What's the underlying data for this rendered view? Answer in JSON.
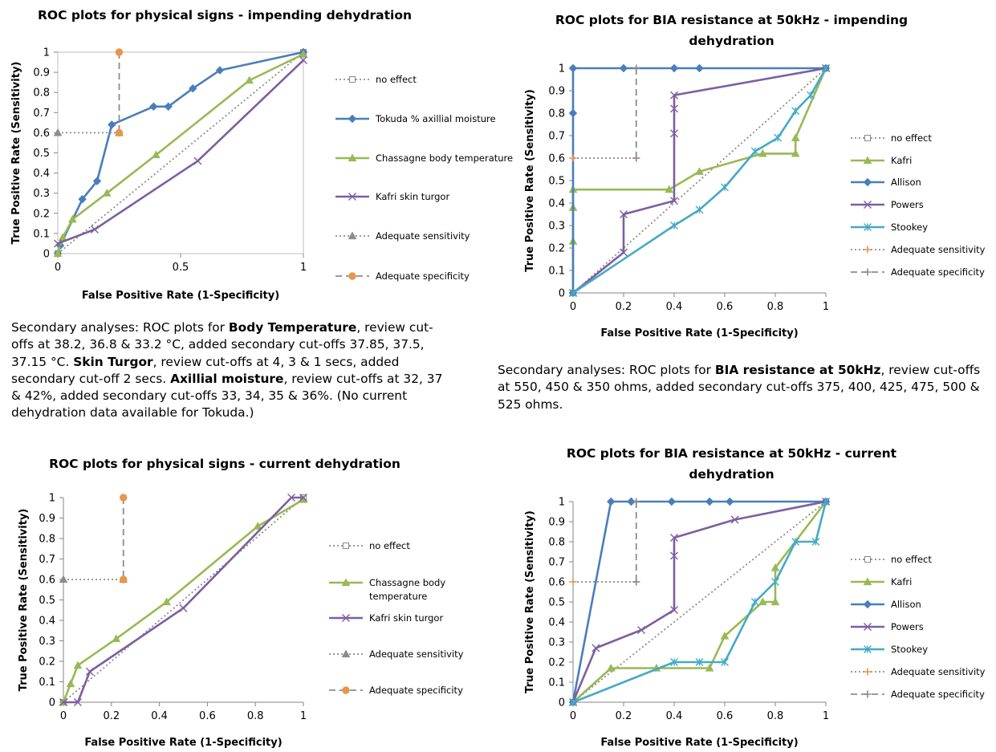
{
  "charts": [
    {
      "title_lines": [
        "ROC plots for physical signs - impending dehydration"
      ],
      "xlabel": "False Positive Rate (1-Specificity)",
      "ylabel": "True Positive Rate (Sensitivity)",
      "xticks": [
        "0",
        "0.5",
        "1"
      ],
      "yticks": [
        "0",
        "0.1",
        "0.2",
        "0.3",
        "0.4",
        "0.5",
        "0.6",
        "0.7",
        "0.8",
        "0.9",
        "1"
      ],
      "legend": [
        "no effect",
        "Tokuda % axillial moisture",
        "Chassagne body temperature",
        "Kafri skin turgor",
        "Adequate sensitivity",
        "Adequate specificity"
      ]
    },
    {
      "title_lines": [
        "ROC plots for BIA resistance at 50kHz - impending",
        "dehydration"
      ],
      "xlabel": "False Positive Rate (1-Specificity)",
      "ylabel": "True Positive Rate (Sensitivity)",
      "xticks": [
        "0",
        "0.2",
        "0.4",
        "0.6",
        "0.8",
        "1"
      ],
      "yticks": [
        "0",
        "0.1",
        "0.2",
        "0.3",
        "0.4",
        "0.5",
        "0.6",
        "0.7",
        "0.8",
        "0.9",
        "1"
      ],
      "legend": [
        "no effect",
        "Kafri",
        "Allison",
        "Powers",
        "Stookey",
        "Adequate sensitivity",
        "Adequate specificity"
      ]
    },
    {
      "title_lines": [
        "ROC plots for physical signs - current dehydration"
      ],
      "xlabel": "False Positive Rate (1-Specificity)",
      "ylabel": "True Positive Rate (Sensitivity)",
      "xticks": [
        "0",
        "0.2",
        "0.4",
        "0.6",
        "0.8",
        "1"
      ],
      "yticks": [
        "0",
        "0.1",
        "0.2",
        "0.3",
        "0.4",
        "0.5",
        "0.6",
        "0.7",
        "0.8",
        "0.9",
        "1"
      ],
      "legend": [
        "no effect",
        "Chassagne body temperature",
        "Kafri skin turgor",
        "Adequate sensitivity",
        "Adequate specificity"
      ]
    },
    {
      "title_lines": [
        "ROC plots for BIA resistance at 50kHz - current",
        "dehydration"
      ],
      "xlabel": "False Positive Rate (1-Specificity)",
      "ylabel": "True Positive Rate (Sensitivity)",
      "xticks": [
        "0",
        "0.2",
        "0.4",
        "0.6",
        "0.8",
        "1"
      ],
      "yticks": [
        "0",
        "0.1",
        "0.2",
        "0.3",
        "0.4",
        "0.5",
        "0.6",
        "0.7",
        "0.8",
        "0.9",
        "1"
      ],
      "legend": [
        "no effect",
        "Kafri",
        "Allison",
        "Powers",
        "Stookey",
        "Adequate sensitivity",
        "Adequate specificity"
      ]
    }
  ],
  "notes": {
    "left": [
      {
        "text": "Secondary analyses: ROC plots for "
      },
      {
        "text": "Body Temperature",
        "bold": true
      },
      {
        "text": ", review cut-offs at 38.2, 36.8 & 33.2 °C, added secondary cut-offs 37.85, 37.5, 37.15 °C. "
      },
      {
        "text": "Skin Turgor",
        "bold": true
      },
      {
        "text": ", review cut-offs at 4, 3 & 1 secs, added secondary cut-off 2 secs. "
      },
      {
        "text": "Axillial moisture",
        "bold": true
      },
      {
        "text": ", review cut-offs at 32, 37 & 42%, added secondary cut-offs 33, 34, 35 & 36%. (No current dehydration data available for Tokuda.)"
      }
    ],
    "right": [
      {
        "text": "Secondary analyses: ROC plots for "
      },
      {
        "text": "BIA resistance at 50kHz",
        "bold": true
      },
      {
        "text": ", review cut-offs at 550, 450 & 350 ohms, added secondary cut-offs 375, 400, 425, 475, 500 & 525 ohms."
      }
    ]
  },
  "colors": {
    "no_effect": "#8c8c8c",
    "blue": "#4a7ebb",
    "green": "#98b954",
    "purple": "#7d5fa0",
    "teal": "#46aac5",
    "orange": "#e8964c",
    "axis": "#868686"
  },
  "chart_data": [
    {
      "type": "line",
      "title": "ROC plots for physical signs - impending dehydration",
      "xlabel": "False Positive Rate (1-Specificity)",
      "ylabel": "True Positive Rate (Sensitivity)",
      "xlim": [
        0,
        1
      ],
      "ylim": [
        0,
        1
      ],
      "grid": false,
      "legend": "right",
      "series": [
        {
          "name": "no effect",
          "color": "no_effect",
          "dash": "dot",
          "marker": "square",
          "x": [
            0,
            1
          ],
          "y": [
            0,
            1
          ]
        },
        {
          "name": "Tokuda % axillial moisture",
          "color": "blue",
          "marker": "diamond",
          "x": [
            0,
            0.01,
            0.1,
            0.16,
            0.22,
            0.39,
            0.45,
            0.55,
            0.66,
            1
          ],
          "y": [
            0,
            0.04,
            0.27,
            0.36,
            0.64,
            0.73,
            0.73,
            0.82,
            0.91,
            1
          ]
        },
        {
          "name": "Chassagne body temperature",
          "color": "green",
          "marker": "triangle",
          "x": [
            0,
            0.02,
            0.06,
            0.2,
            0.4,
            0.78,
            1
          ],
          "y": [
            0,
            0.08,
            0.17,
            0.3,
            0.49,
            0.86,
            0.99
          ]
        },
        {
          "name": "Kafri skin turgor",
          "color": "purple",
          "marker": "x",
          "x": [
            0,
            0.15,
            0.57,
            1
          ],
          "y": [
            0.05,
            0.12,
            0.46,
            0.96
          ]
        },
        {
          "name": "Adequate sensitivity",
          "color": "no_effect",
          "dash": "dot",
          "marker": "triangle",
          "x": [
            0,
            0.25
          ],
          "y": [
            0.6,
            0.6
          ]
        },
        {
          "name": "Adequate specificity",
          "color": "no_effect",
          "dash": "dash",
          "marker": "circle",
          "marker_color": "orange",
          "x": [
            0.25,
            0.25
          ],
          "y": [
            1,
            0.6
          ]
        }
      ]
    },
    {
      "type": "line",
      "title": "ROC plots for BIA resistance at 50kHz - impending dehydration",
      "xlabel": "False Positive Rate (1-Specificity)",
      "ylabel": "True Positive Rate (Sensitivity)",
      "xlim": [
        0,
        1
      ],
      "ylim": [
        0,
        1
      ],
      "grid": false,
      "legend": "right",
      "series": [
        {
          "name": "no effect",
          "color": "no_effect",
          "dash": "dot",
          "marker": "square",
          "x": [
            0,
            1
          ],
          "y": [
            0,
            1
          ]
        },
        {
          "name": "Kafri",
          "color": "green",
          "marker": "triangle",
          "x": [
            0,
            0,
            0,
            0,
            0.38,
            0.5,
            0.75,
            0.88,
            0.88,
            1
          ],
          "y": [
            0,
            0.23,
            0.38,
            0.46,
            0.46,
            0.54,
            0.62,
            0.62,
            0.69,
            1
          ]
        },
        {
          "name": "Allison",
          "color": "blue",
          "marker": "diamond",
          "x": [
            0,
            0,
            0,
            0.2,
            0.4,
            0.5,
            1
          ],
          "y": [
            0,
            0.8,
            1,
            1,
            1,
            1,
            1
          ]
        },
        {
          "name": "Powers",
          "color": "purple",
          "marker": "x",
          "x": [
            0,
            0.2,
            0.2,
            0.4,
            0.4,
            0.4,
            0.4,
            1
          ],
          "y": [
            0,
            0.18,
            0.35,
            0.41,
            0.71,
            0.82,
            0.88,
            1
          ]
        },
        {
          "name": "Stookey",
          "color": "teal",
          "marker": "asterisk",
          "x": [
            0,
            0.4,
            0.5,
            0.6,
            0.72,
            0.81,
            0.88,
            0.94,
            1
          ],
          "y": [
            0,
            0.3,
            0.37,
            0.47,
            0.63,
            0.69,
            0.81,
            0.88,
            1
          ]
        },
        {
          "name": "Adequate sensitivity",
          "color": "no_effect",
          "dash": "dot",
          "marker": "plus",
          "marker_color": "orange",
          "x": [
            0,
            0.25
          ],
          "y": [
            0.6,
            0.6
          ]
        },
        {
          "name": "Adequate specificity",
          "color": "no_effect",
          "dash": "dash",
          "marker": "plus",
          "x": [
            0.25,
            0.25
          ],
          "y": [
            1,
            0.6
          ]
        }
      ]
    },
    {
      "type": "line",
      "title": "ROC plots for physical signs - current dehydration",
      "xlabel": "False Positive Rate (1-Specificity)",
      "ylabel": "True Positive Rate (Sensitivity)",
      "xlim": [
        0,
        1
      ],
      "ylim": [
        0,
        1
      ],
      "grid": false,
      "legend": "right",
      "series": [
        {
          "name": "no effect",
          "color": "no_effect",
          "dash": "dot",
          "marker": "square",
          "x": [
            0,
            1
          ],
          "y": [
            0,
            1
          ]
        },
        {
          "name": "Chassagne body temperature",
          "color": "green",
          "marker": "triangle",
          "x": [
            0,
            0.03,
            0.06,
            0.22,
            0.43,
            0.81,
            1
          ],
          "y": [
            0,
            0.09,
            0.18,
            0.31,
            0.49,
            0.86,
            0.99
          ]
        },
        {
          "name": "Kafri skin turgor",
          "color": "purple",
          "marker": "x",
          "x": [
            0,
            0.06,
            0.11,
            0.5,
            0.95,
            1
          ],
          "y": [
            0,
            0,
            0.15,
            0.46,
            1,
            1
          ]
        },
        {
          "name": "Adequate sensitivity",
          "color": "no_effect",
          "dash": "dot",
          "marker": "triangle",
          "x": [
            0,
            0.25
          ],
          "y": [
            0.6,
            0.6
          ]
        },
        {
          "name": "Adequate specificity",
          "color": "no_effect",
          "dash": "dash",
          "marker": "circle",
          "marker_color": "orange",
          "x": [
            0.25,
            0.25
          ],
          "y": [
            1,
            0.6
          ]
        }
      ]
    },
    {
      "type": "line",
      "title": "ROC plots for BIA resistance at 50kHz - current dehydration",
      "xlabel": "False Positive Rate (1-Specificity)",
      "ylabel": "True Positive Rate (Sensitivity)",
      "xlim": [
        0,
        1
      ],
      "ylim": [
        0,
        1
      ],
      "grid": false,
      "legend": "right",
      "series": [
        {
          "name": "no effect",
          "color": "no_effect",
          "dash": "dot",
          "marker": "square",
          "x": [
            0,
            1
          ],
          "y": [
            0,
            1
          ]
        },
        {
          "name": "Kafri",
          "color": "green",
          "marker": "triangle",
          "x": [
            0,
            0.15,
            0.33,
            0.54,
            0.6,
            0.75,
            0.8,
            0.8,
            1
          ],
          "y": [
            0,
            0.17,
            0.17,
            0.17,
            0.33,
            0.5,
            0.5,
            0.67,
            1
          ]
        },
        {
          "name": "Allison",
          "color": "blue",
          "marker": "diamond",
          "x": [
            0,
            0.15,
            0.23,
            0.23,
            0.39,
            0.54,
            0.62,
            1
          ],
          "y": [
            0,
            1,
            1,
            1,
            1,
            1,
            1,
            1
          ]
        },
        {
          "name": "Powers",
          "color": "purple",
          "marker": "x",
          "x": [
            0,
            0.09,
            0.27,
            0.4,
            0.4,
            0.4,
            0.64,
            1
          ],
          "y": [
            0,
            0.27,
            0.36,
            0.46,
            0.73,
            0.82,
            0.91,
            1
          ]
        },
        {
          "name": "Stookey",
          "color": "teal",
          "marker": "asterisk",
          "x": [
            0,
            0.4,
            0.5,
            0.6,
            0.72,
            0.8,
            0.88,
            0.96,
            1
          ],
          "y": [
            0,
            0.2,
            0.2,
            0.2,
            0.5,
            0.6,
            0.8,
            0.8,
            1
          ]
        },
        {
          "name": "Adequate sensitivity",
          "color": "no_effect",
          "dash": "dot",
          "marker": "plus",
          "marker_color": "orange",
          "x": [
            0,
            0.25
          ],
          "y": [
            0.6,
            0.6
          ]
        },
        {
          "name": "Adequate specificity",
          "color": "no_effect",
          "dash": "dash",
          "marker": "plus",
          "x": [
            0.25,
            0.25
          ],
          "y": [
            1,
            0.6
          ]
        }
      ]
    }
  ]
}
